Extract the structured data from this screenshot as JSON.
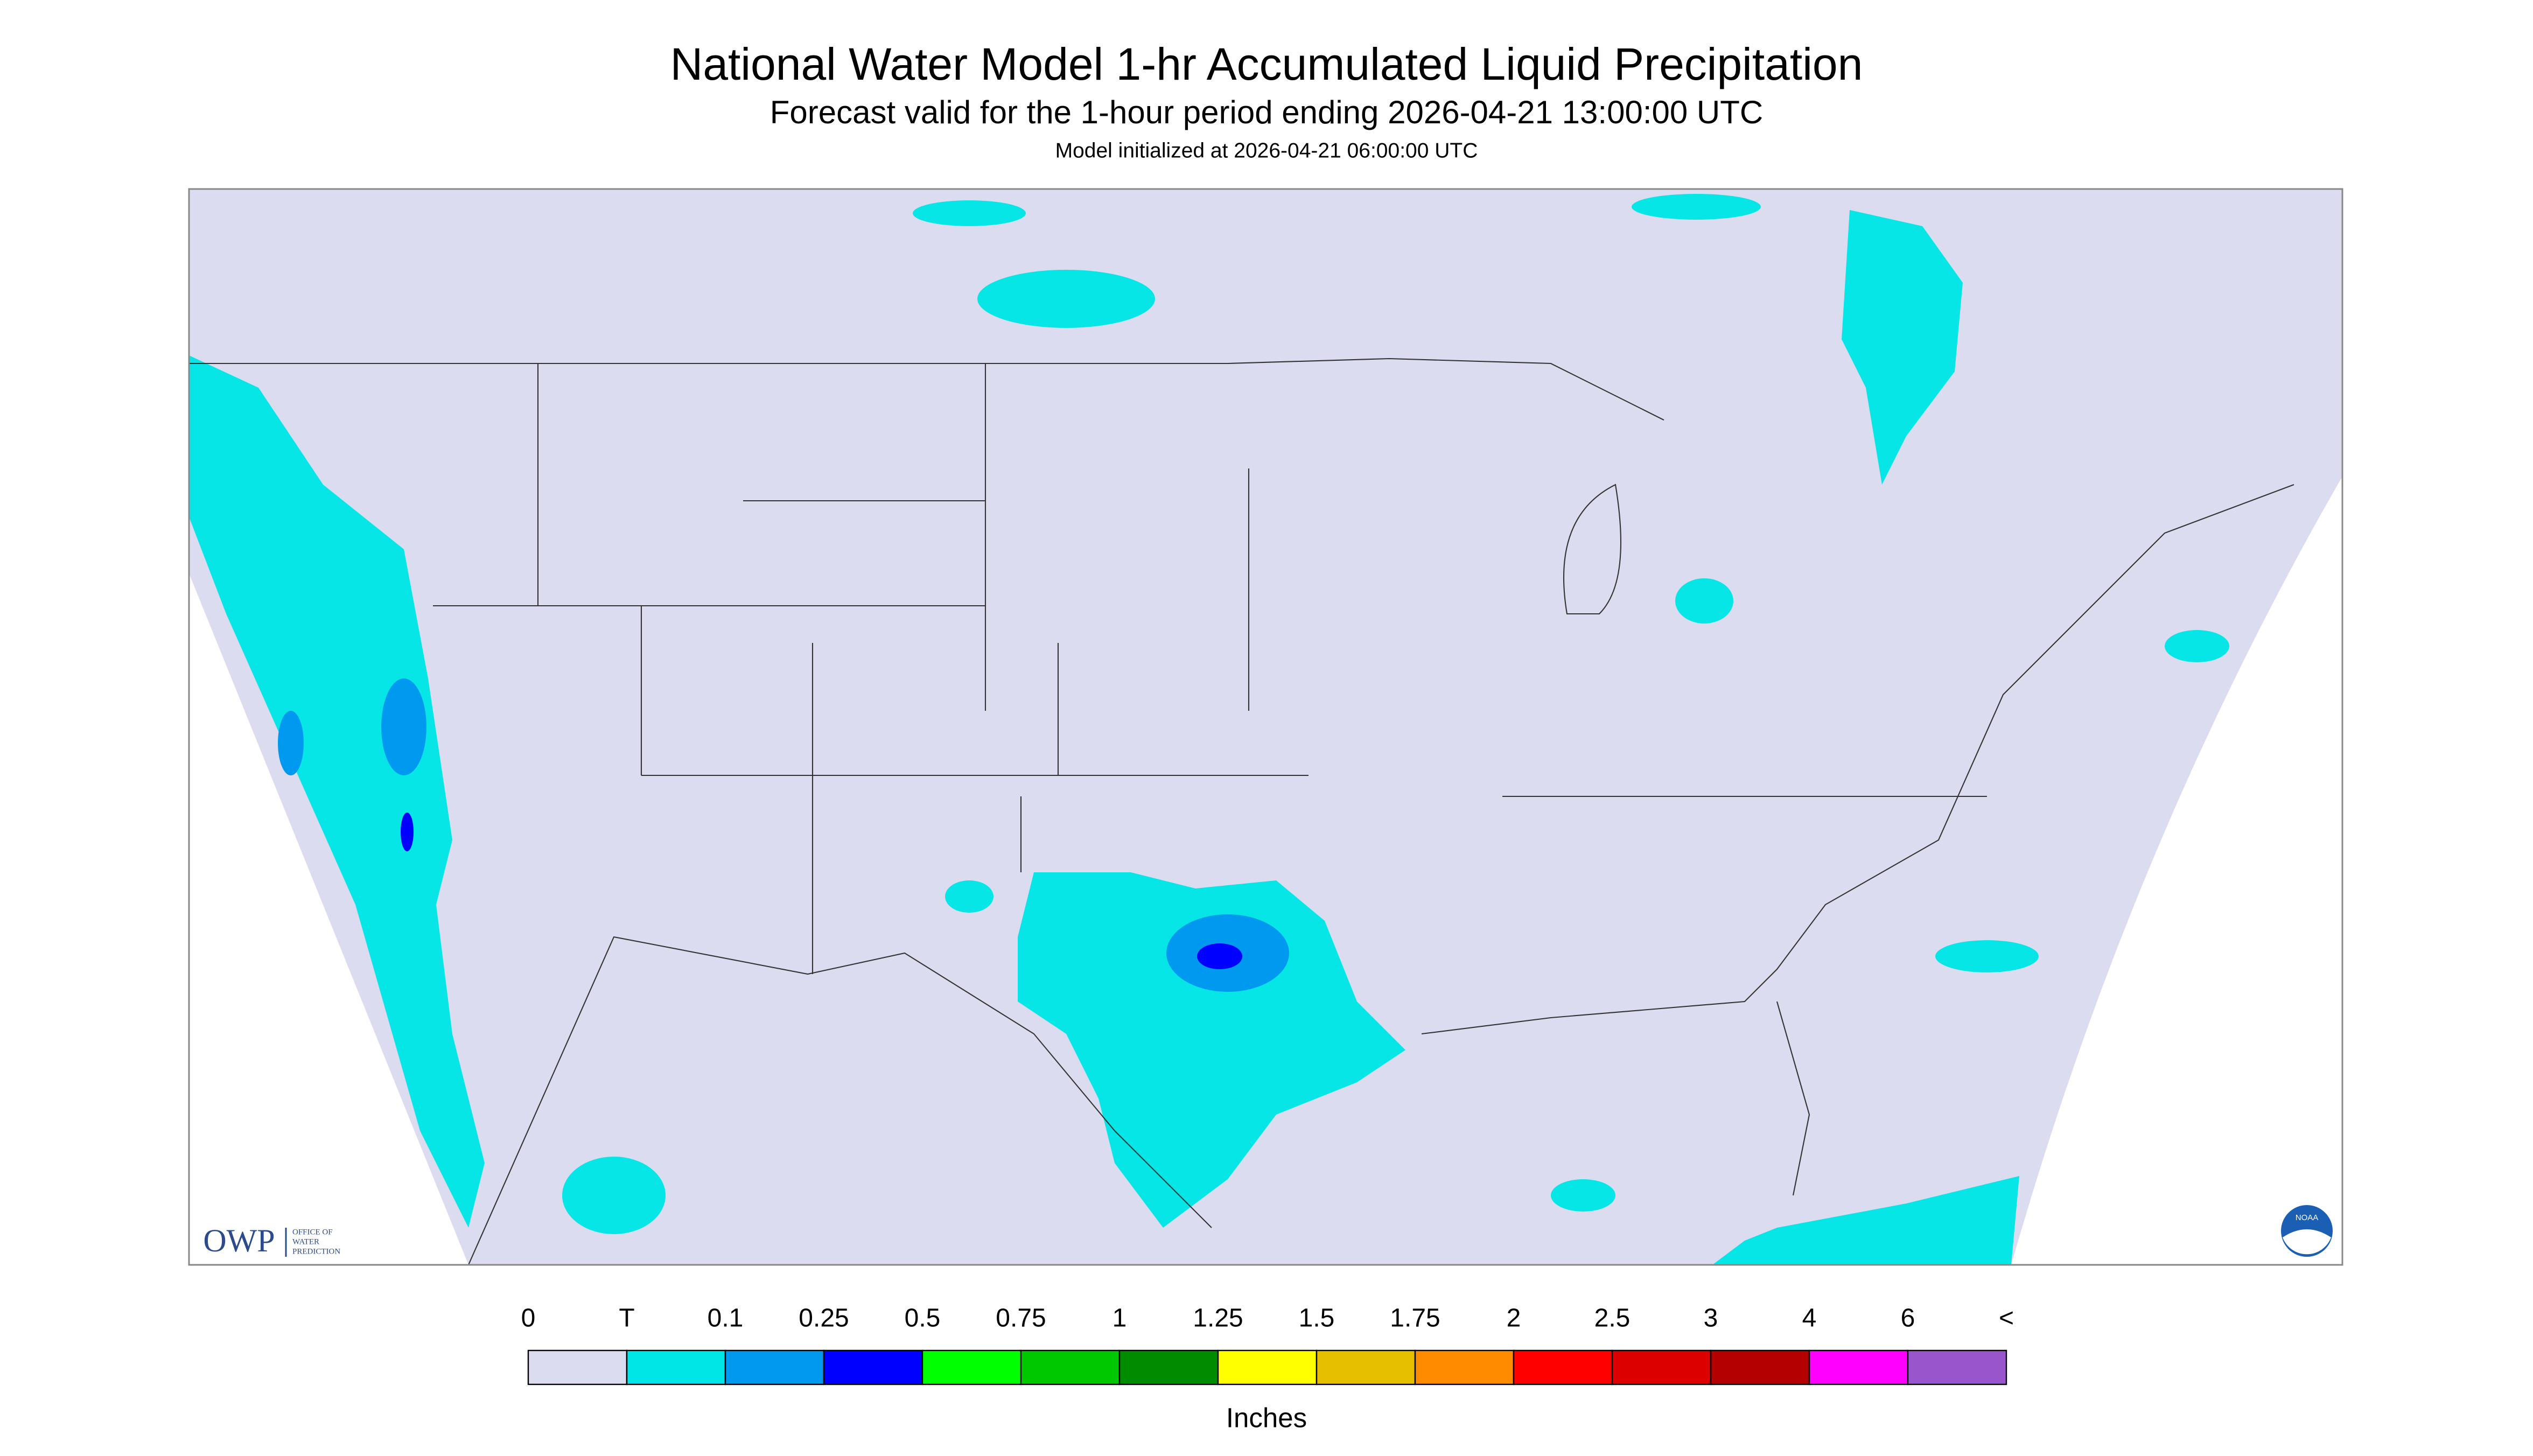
{
  "header": {
    "title": "National Water Model 1-hr Accumulated Liquid Precipitation",
    "subtitle": "Forecast valid for the 1-hour period ending 2026-04-21 13:00:00 UTC",
    "note": "Model initialized at 2026-04-21 06:00:00 UTC"
  },
  "logos": {
    "owp": "OWP",
    "owp_text": [
      "OFFICE OF",
      "WATER",
      "PREDICTION"
    ],
    "noaa": "NOAA"
  },
  "legend": {
    "labels": [
      "0",
      "T",
      "0.1",
      "0.25",
      "0.5",
      "0.75",
      "1",
      "1.25",
      "1.5",
      "1.75",
      "2",
      "2.5",
      "3",
      "4",
      "6",
      "<"
    ],
    "colors": [
      "#dcdcf0",
      "#00e6e6",
      "#0099f0",
      "#0000ff",
      "#00ff00",
      "#00c800",
      "#008c00",
      "#ffff00",
      "#e6bf00",
      "#ff8c00",
      "#ff0000",
      "#dc0000",
      "#b40000",
      "#ff00ff",
      "#9955cc"
    ],
    "units": "Inches"
  }
}
